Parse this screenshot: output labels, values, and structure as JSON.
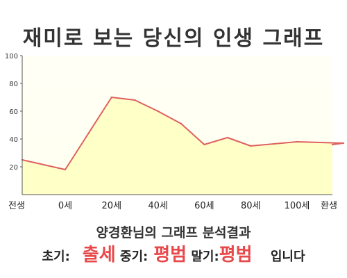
{
  "chart_data": {
    "type": "area",
    "title": "재미로 보는 당신의 인생 그래프",
    "xlabel": "",
    "ylabel": "",
    "x_ticks": [
      "전생",
      "0세",
      "20세",
      "40세",
      "60세",
      "80세",
      "100세",
      "환생"
    ],
    "y_ticks": [
      "20",
      "40",
      "60",
      "80",
      "100"
    ],
    "ylim": [
      0,
      100
    ],
    "grid": false,
    "legend": "none",
    "series": [
      {
        "points": [
          {
            "x": "전생",
            "y": 25
          },
          {
            "x": "0세",
            "y": 18
          },
          {
            "x": "20세",
            "y": 70
          },
          {
            "x": "30세",
            "y": 68
          },
          {
            "x": "40세",
            "y": 60
          },
          {
            "x": "50세",
            "y": 51
          },
          {
            "x": "60세",
            "y": 36
          },
          {
            "x": "70세",
            "y": 41
          },
          {
            "x": "80세",
            "y": 35
          },
          {
            "x": "100세",
            "y": 38
          },
          {
            "x": "120세",
            "y": 37
          },
          {
            "x": "환생",
            "y": 36
          }
        ]
      }
    ],
    "line_color": "#e06060",
    "fill_color": "#ffffc8"
  },
  "result": {
    "heading": "양경환님의 그래프 분석결과",
    "early_label": "초기:",
    "early_value": "출세",
    "middle_label": "중기:",
    "middle_value": "평범",
    "late_label": "말기:",
    "late_value": "평범",
    "suffix": "입니다"
  }
}
